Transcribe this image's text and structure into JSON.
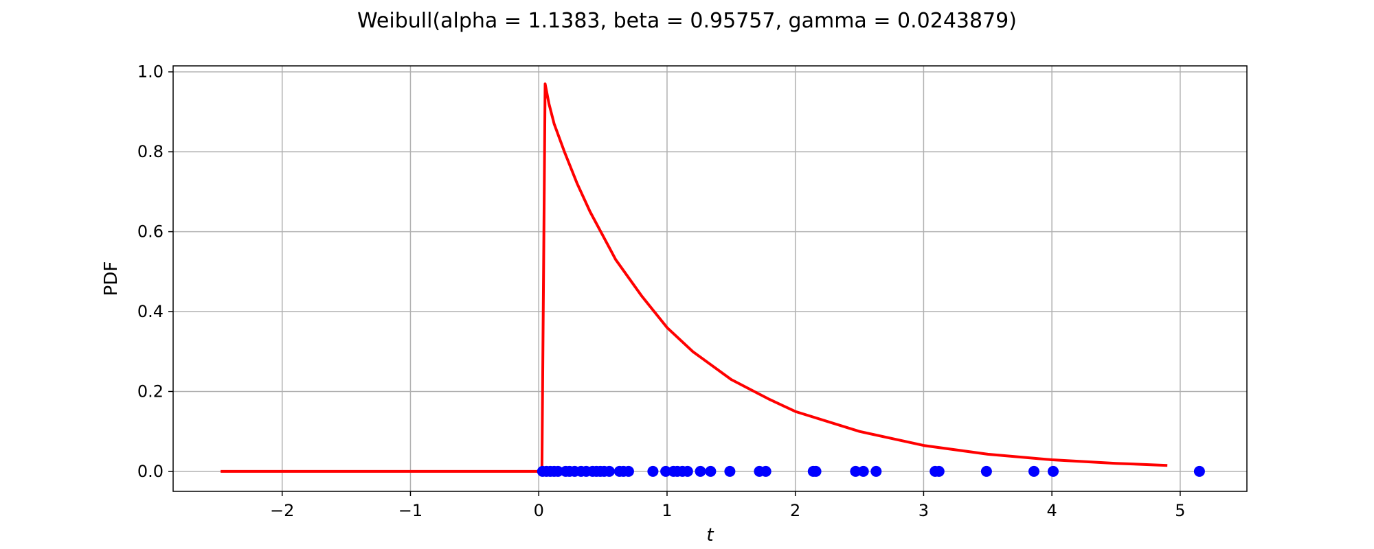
{
  "chart_data": {
    "type": "line",
    "title": "Weibull(alpha = 1.1383, beta = 0.95757, gamma = 0.0243879)",
    "xlabel": "t",
    "ylabel": "PDF",
    "xlim": [
      -2.85,
      5.52
    ],
    "ylim": [
      -0.05,
      1.015
    ],
    "grid": true,
    "x_ticks": [
      -2,
      -1,
      0,
      1,
      2,
      3,
      4,
      5
    ],
    "y_ticks": [
      0.0,
      0.2,
      0.4,
      0.6,
      0.8,
      1.0
    ],
    "x_tick_labels": [
      "−2",
      "−1",
      "0",
      "1",
      "2",
      "3",
      "4",
      "5"
    ],
    "y_tick_labels": [
      "0.0",
      "0.2",
      "0.4",
      "0.6",
      "0.8",
      "1.0"
    ],
    "colors": {
      "curve": "#ff0000",
      "points": "#0000ff",
      "grid": "#b0b0b0",
      "axes": "#000000"
    },
    "series": [
      {
        "type": "line",
        "x": [
          -2.48,
          -1.5,
          -0.5,
          0.0,
          0.0244,
          0.05,
          0.08,
          0.12,
          0.2,
          0.3,
          0.4,
          0.5,
          0.6,
          0.8,
          1.0,
          1.2,
          1.5,
          1.8,
          2.0,
          2.5,
          3.0,
          3.5,
          4.0,
          4.5,
          4.9
        ],
        "y": [
          0,
          0,
          0,
          0,
          0,
          0.97,
          0.92,
          0.87,
          0.8,
          0.72,
          0.65,
          0.59,
          0.53,
          0.44,
          0.36,
          0.3,
          0.23,
          0.18,
          0.15,
          0.1,
          0.065,
          0.043,
          0.029,
          0.02,
          0.015
        ]
      },
      {
        "type": "scatter",
        "x": [
          0.03,
          0.06,
          0.09,
          0.12,
          0.15,
          0.21,
          0.24,
          0.28,
          0.33,
          0.37,
          0.42,
          0.45,
          0.48,
          0.51,
          0.55,
          0.63,
          0.66,
          0.7,
          0.89,
          0.99,
          1.05,
          1.08,
          1.12,
          1.16,
          1.26,
          1.34,
          1.49,
          1.72,
          1.77,
          2.14,
          2.16,
          2.47,
          2.53,
          2.63,
          3.09,
          3.12,
          3.49,
          3.86,
          4.01,
          5.15
        ],
        "y": [
          0,
          0,
          0,
          0,
          0,
          0,
          0,
          0,
          0,
          0,
          0,
          0,
          0,
          0,
          0,
          0,
          0,
          0,
          0,
          0,
          0,
          0,
          0,
          0,
          0,
          0,
          0,
          0,
          0,
          0,
          0,
          0,
          0,
          0,
          0,
          0,
          0,
          0,
          0,
          0
        ]
      }
    ]
  }
}
